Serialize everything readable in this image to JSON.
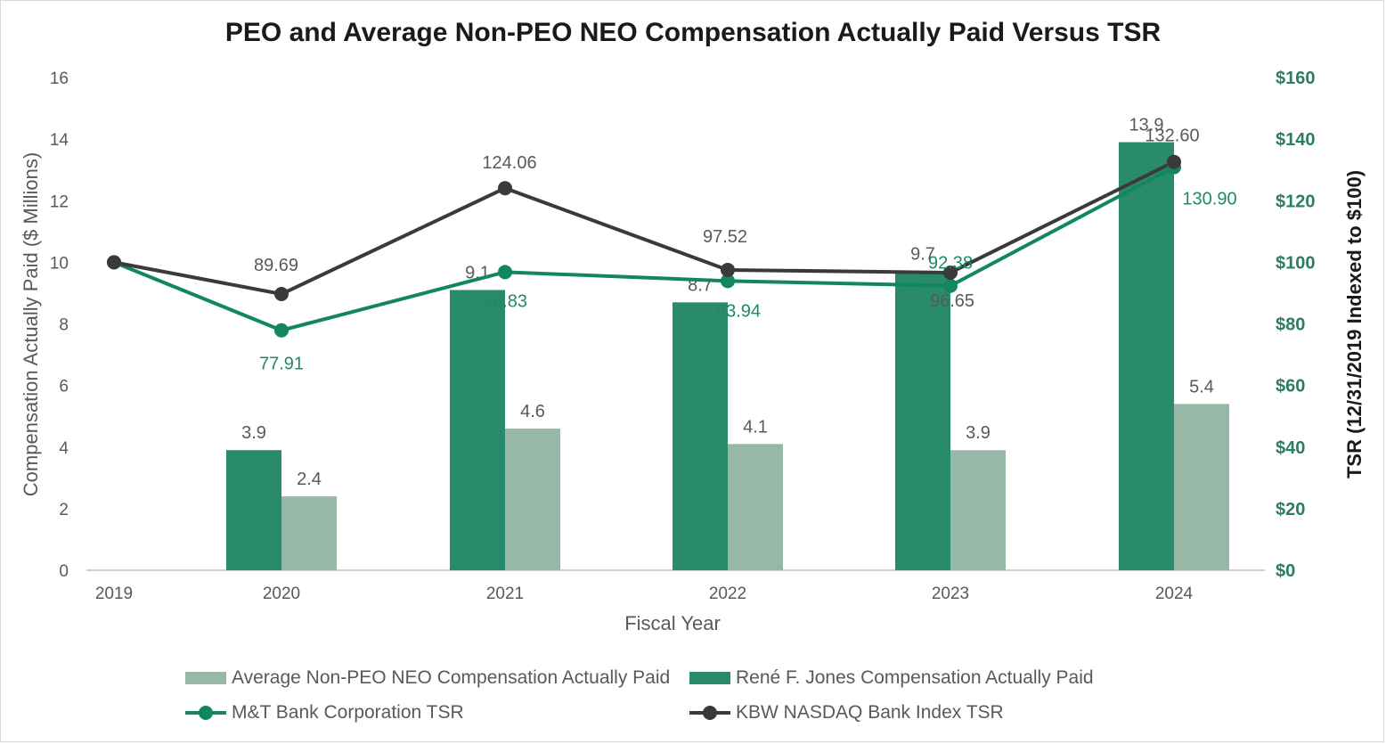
{
  "chart_data": {
    "type": "bar",
    "title": "PEO and Average Non-PEO NEO Compensation Actually Paid Versus TSR",
    "xlabel": "Fiscal Year",
    "ylabel": "Compensation Actually Paid ($ Millions)",
    "y2label": "TSR (12/31/2019 Indexed to $100)",
    "categories": [
      "2019",
      "2020",
      "2021",
      "2022",
      "2023",
      "2024"
    ],
    "ylim": [
      0,
      16
    ],
    "y2lim": [
      0,
      160
    ],
    "yticks": [
      "0",
      "2",
      "4",
      "6",
      "8",
      "10",
      "12",
      "14",
      "16"
    ],
    "y2ticks": [
      "$0",
      "$20",
      "$40",
      "$60",
      "$80",
      "$100",
      "$120",
      "$140",
      "$160"
    ],
    "bar_series": [
      {
        "name": "René F. Jones Compensation Actually Paid",
        "color": "#2a8a6c",
        "values": [
          null,
          3.9,
          9.1,
          8.7,
          9.7,
          13.9
        ],
        "labels": [
          "",
          "3.9",
          "9.1",
          "8.7",
          "9.7",
          "13.9"
        ]
      },
      {
        "name": "Average Non-PEO NEO Compensation Actually Paid",
        "color": "#97b8a6",
        "values": [
          null,
          2.4,
          4.6,
          4.1,
          3.9,
          5.4
        ],
        "labels": [
          "",
          "2.4",
          "4.6",
          "4.1",
          "3.9",
          "5.4"
        ]
      }
    ],
    "line_series": [
      {
        "name": "M&T Bank Corporation TSR",
        "color": "#12865f",
        "values": [
          100,
          77.91,
          96.83,
          93.94,
          92.38,
          130.9
        ],
        "labels": [
          "",
          "77.91",
          "96.83",
          "93.94",
          "92.38",
          "130.90"
        ]
      },
      {
        "name": "KBW NASDAQ Bank Index TSR",
        "color": "#3a3a3a",
        "values": [
          100,
          89.69,
          124.06,
          97.52,
          96.65,
          132.6
        ],
        "labels": [
          "",
          "89.69",
          "124.06",
          "97.52",
          "96.65",
          "132.60"
        ]
      }
    ],
    "legend": [
      "Average Non-PEO NEO Compensation Actually Paid",
      "René F. Jones Compensation Actually Paid",
      "M&T Bank Corporation TSR",
      "KBW NASDAQ Bank Index TSR"
    ],
    "legend_position": "bottom"
  }
}
